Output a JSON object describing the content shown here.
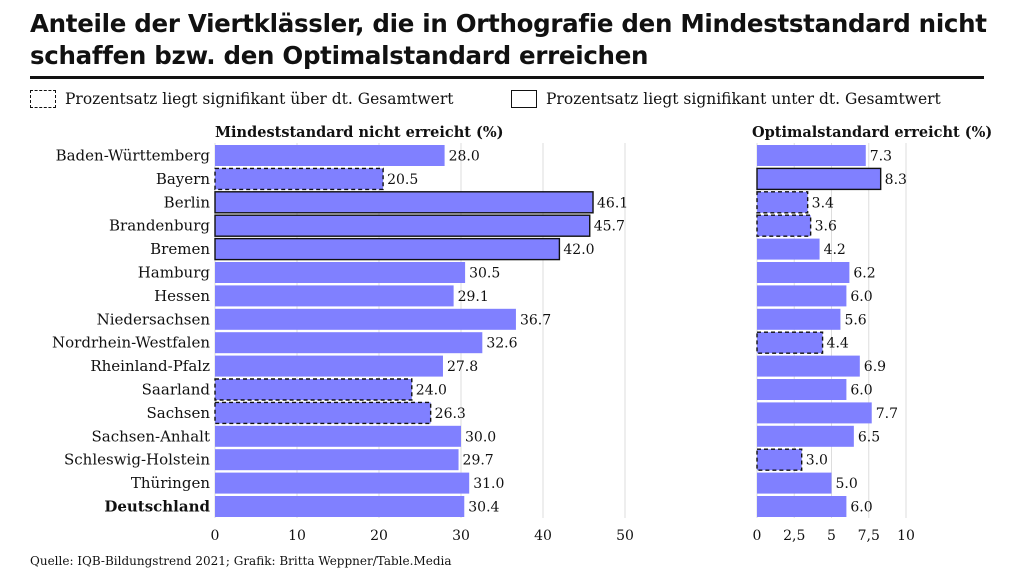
{
  "title": "Anteile der Viertklässler, die in Orthografie den Mindeststandard nicht schaffen bzw. den Optimalstandard erreichen",
  "legend": {
    "above": "Prozentsatz liegt signifikant über dt. Gesamtwert",
    "below": "Prozentsatz liegt signifikant unter dt. Gesamtwert"
  },
  "source": "Quelle: IQB-Bildungstrend 2021; Grafik: Britta Weppner/Table.Media",
  "colors": {
    "bar": "#8080ff",
    "text": "#111111",
    "grid": "#dddddd"
  },
  "chart_data": [
    {
      "type": "bar",
      "orientation": "horizontal",
      "title": "Mindeststandard nicht erreicht (%)",
      "categories": [
        "Baden-Württemberg",
        "Bayern",
        "Berlin",
        "Brandenburg",
        "Bremen",
        "Hamburg",
        "Hessen",
        "Niedersachsen",
        "Nordrhein-Westfalen",
        "Rheinland-Pfalz",
        "Saarland",
        "Sachsen",
        "Sachsen-Anhalt",
        "Schleswig-Holstein",
        "Thüringen",
        "Deutschland"
      ],
      "values": [
        28.0,
        20.5,
        46.1,
        45.7,
        42.0,
        30.5,
        29.1,
        36.7,
        32.6,
        27.8,
        24.0,
        26.3,
        30.0,
        29.7,
        31.0,
        30.4
      ],
      "value_labels": [
        "28.0",
        "20.5",
        "46.1",
        "45.7",
        "42.0",
        "30.5",
        "29.1",
        "36.7",
        "32.6",
        "27.8",
        "24.0",
        "26.3",
        "30.0",
        "29.7",
        "31.0",
        "30.4"
      ],
      "significance": [
        "none",
        "above",
        "below",
        "below",
        "below",
        "none",
        "none",
        "none",
        "none",
        "none",
        "above",
        "above",
        "none",
        "none",
        "none",
        "none"
      ],
      "xlim": [
        0,
        50
      ],
      "ticks": [
        0,
        10,
        20,
        30,
        40,
        50
      ],
      "tick_labels": [
        "0",
        "10",
        "20",
        "30",
        "40",
        "50"
      ]
    },
    {
      "type": "bar",
      "orientation": "horizontal",
      "title": "Optimalstandard erreicht (%)",
      "categories": [
        "Baden-Württemberg",
        "Bayern",
        "Berlin",
        "Brandenburg",
        "Bremen",
        "Hamburg",
        "Hessen",
        "Niedersachsen",
        "Nordrhein-Westfalen",
        "Rheinland-Pfalz",
        "Saarland",
        "Sachsen",
        "Sachsen-Anhalt",
        "Schleswig-Holstein",
        "Thüringen",
        "Deutschland"
      ],
      "values": [
        7.3,
        8.3,
        3.4,
        3.6,
        4.2,
        6.2,
        6.0,
        5.6,
        4.4,
        6.9,
        6.0,
        7.7,
        6.5,
        3.0,
        5.0,
        6.0
      ],
      "value_labels": [
        "7.3",
        "8.3",
        "3.4",
        "3.6",
        "4.2",
        "6.2",
        "6.0",
        "5.6",
        "4.4",
        "6.9",
        "6.0",
        "7.7",
        "6.5",
        "3.0",
        "5.0",
        "6.0"
      ],
      "significance": [
        "none",
        "below",
        "above",
        "above",
        "none",
        "none",
        "none",
        "none",
        "above",
        "none",
        "none",
        "none",
        "none",
        "above",
        "none",
        "none"
      ],
      "xlim": [
        0,
        10
      ],
      "ticks": [
        0,
        2.5,
        5,
        7.5,
        10
      ],
      "tick_labels": [
        "0",
        "2,5",
        "5",
        "7,5",
        "10"
      ]
    }
  ]
}
